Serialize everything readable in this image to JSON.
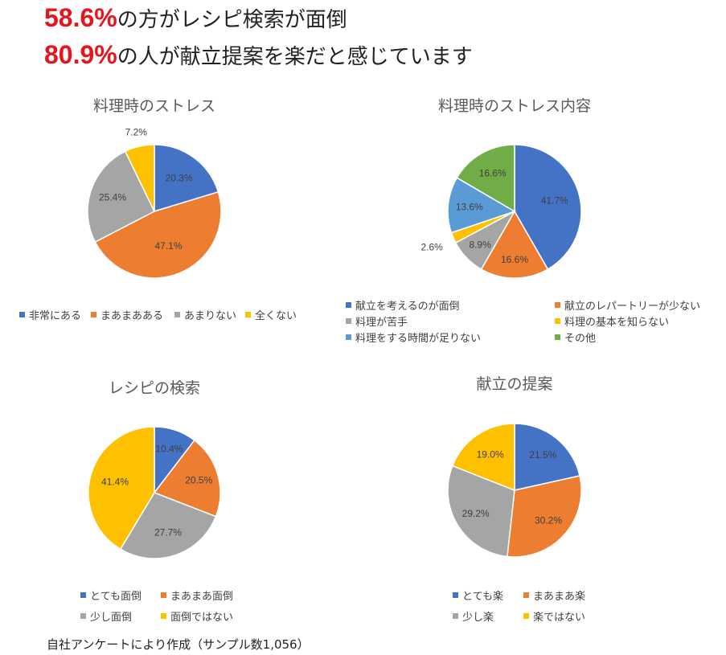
{
  "headline": {
    "line1_pct": "58.6%",
    "line1_text": "の方がレシピ検索が面倒",
    "line2_pct": "80.9%",
    "line2_text": "の人が献立提案を楽だと感じています"
  },
  "footer": "自社アンケートにより作成（サンプル数1,056）",
  "colors": {
    "blue": "#4472c4",
    "orange": "#ed7d31",
    "gray": "#a5a5a5",
    "yellow": "#ffc000",
    "lightblue": "#5b9bd5",
    "green": "#70ad47",
    "headline_red": "#e8141c"
  },
  "chart_data": [
    {
      "type": "pie",
      "title": "料理時のストレス",
      "categories": [
        "非常にある",
        "まあまあある",
        "あまりない",
        "全くない"
      ],
      "values": [
        20.3,
        47.1,
        25.4,
        7.2
      ],
      "labels": [
        "20.3%",
        "47.1%",
        "25.4%",
        "7.2%"
      ],
      "colors": [
        "#4472c4",
        "#ed7d31",
        "#a5a5a5",
        "#ffc000"
      ],
      "legend": "bottom"
    },
    {
      "type": "pie",
      "title": "料理時のストレス内容",
      "categories": [
        "献立を考えるのが面倒",
        "献立のレパートリーが少ない",
        "料理が苦手",
        "料理の基本を知らない",
        "料理をする時間が足りない",
        "その他"
      ],
      "values": [
        41.7,
        16.6,
        8.9,
        2.6,
        13.6,
        16.6
      ],
      "labels": [
        "41.7%",
        "16.6%",
        "8.9%",
        "2.6%",
        "13.6%",
        "16.6%"
      ],
      "colors": [
        "#4472c4",
        "#ed7d31",
        "#a5a5a5",
        "#ffc000",
        "#5b9bd5",
        "#70ad47"
      ],
      "legend": "bottom"
    },
    {
      "type": "pie",
      "title": "レシピの検索",
      "categories": [
        "とても面倒",
        "まあまあ面倒",
        "少し面倒",
        "面倒ではない"
      ],
      "values": [
        10.4,
        20.5,
        27.7,
        41.4
      ],
      "labels": [
        "10.4%",
        "20.5%",
        "27.7%",
        "41.4%"
      ],
      "colors": [
        "#4472c4",
        "#ed7d31",
        "#a5a5a5",
        "#ffc000"
      ],
      "legend": "bottom"
    },
    {
      "type": "pie",
      "title": "献立の提案",
      "categories": [
        "とても楽",
        "まあまあ楽",
        "少し楽",
        "楽ではない"
      ],
      "values": [
        21.5,
        30.2,
        29.2,
        19.0
      ],
      "labels": [
        "21.5%",
        "30.2%",
        "29.2%",
        "19.0%"
      ],
      "colors": [
        "#4472c4",
        "#ed7d31",
        "#a5a5a5",
        "#ffc000"
      ],
      "legend": "bottom"
    }
  ]
}
